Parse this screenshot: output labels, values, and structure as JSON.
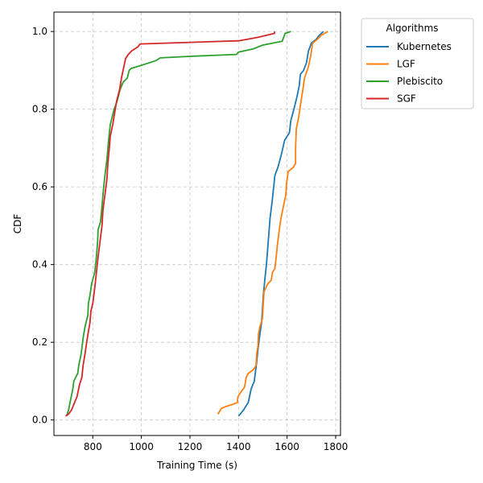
{
  "chart_data": {
    "type": "line",
    "title": "",
    "xlabel": "Training Time (s)",
    "ylabel": "CDF",
    "xlim": [
      640,
      1820
    ],
    "ylim": [
      -0.04,
      1.05
    ],
    "xticks": [
      800,
      1000,
      1200,
      1400,
      1600,
      1800
    ],
    "yticks": [
      0.0,
      0.2,
      0.4,
      0.6,
      0.8,
      1.0
    ],
    "xtick_labels": [
      "800",
      "1000",
      "1200",
      "1400",
      "1600",
      "1800"
    ],
    "ytick_labels": [
      "0.0",
      "0.2",
      "0.4",
      "0.6",
      "0.8",
      "1.0"
    ],
    "grid": true,
    "legend": {
      "title": "Algorithms",
      "placement": "outside-right-top"
    },
    "series": [
      {
        "name": "Kubernetes",
        "color": "#1f77b4",
        "points": [
          [
            1400,
            0.01
          ],
          [
            1420,
            0.025
          ],
          [
            1440,
            0.045
          ],
          [
            1452,
            0.08
          ],
          [
            1465,
            0.1
          ],
          [
            1475,
            0.15
          ],
          [
            1480,
            0.18
          ],
          [
            1488,
            0.22
          ],
          [
            1495,
            0.25
          ],
          [
            1498,
            0.28
          ],
          [
            1502,
            0.32
          ],
          [
            1508,
            0.36
          ],
          [
            1515,
            0.4
          ],
          [
            1520,
            0.44
          ],
          [
            1525,
            0.48
          ],
          [
            1530,
            0.52
          ],
          [
            1538,
            0.56
          ],
          [
            1545,
            0.6
          ],
          [
            1550,
            0.63
          ],
          [
            1562,
            0.65
          ],
          [
            1575,
            0.68
          ],
          [
            1590,
            0.72
          ],
          [
            1610,
            0.74
          ],
          [
            1615,
            0.77
          ],
          [
            1628,
            0.8
          ],
          [
            1640,
            0.83
          ],
          [
            1650,
            0.86
          ],
          [
            1655,
            0.89
          ],
          [
            1668,
            0.9
          ],
          [
            1680,
            0.92
          ],
          [
            1688,
            0.95
          ],
          [
            1700,
            0.97
          ],
          [
            1720,
            0.98
          ],
          [
            1732,
            0.99
          ],
          [
            1750,
            1.0
          ]
        ]
      },
      {
        "name": "LGF",
        "color": "#ff7f0e",
        "points": [
          [
            1315,
            0.015
          ],
          [
            1330,
            0.03
          ],
          [
            1350,
            0.035
          ],
          [
            1375,
            0.04
          ],
          [
            1395,
            0.045
          ],
          [
            1398,
            0.06
          ],
          [
            1408,
            0.07
          ],
          [
            1425,
            0.085
          ],
          [
            1432,
            0.11
          ],
          [
            1440,
            0.12
          ],
          [
            1462,
            0.13
          ],
          [
            1472,
            0.14
          ],
          [
            1475,
            0.17
          ],
          [
            1480,
            0.19
          ],
          [
            1482,
            0.22
          ],
          [
            1488,
            0.24
          ],
          [
            1498,
            0.26
          ],
          [
            1502,
            0.3
          ],
          [
            1505,
            0.33
          ],
          [
            1520,
            0.35
          ],
          [
            1535,
            0.36
          ],
          [
            1540,
            0.38
          ],
          [
            1550,
            0.39
          ],
          [
            1555,
            0.42
          ],
          [
            1560,
            0.45
          ],
          [
            1568,
            0.49
          ],
          [
            1575,
            0.52
          ],
          [
            1585,
            0.55
          ],
          [
            1595,
            0.58
          ],
          [
            1598,
            0.61
          ],
          [
            1605,
            0.64
          ],
          [
            1625,
            0.65
          ],
          [
            1635,
            0.66
          ],
          [
            1635,
            0.7
          ],
          [
            1638,
            0.75
          ],
          [
            1648,
            0.78
          ],
          [
            1655,
            0.81
          ],
          [
            1665,
            0.85
          ],
          [
            1672,
            0.88
          ],
          [
            1688,
            0.91
          ],
          [
            1698,
            0.94
          ],
          [
            1705,
            0.97
          ],
          [
            1725,
            0.98
          ],
          [
            1740,
            0.99
          ],
          [
            1768,
            1.0
          ]
        ]
      },
      {
        "name": "Plebiscito",
        "color": "#2ca02c",
        "points": [
          [
            692,
            0.01
          ],
          [
            700,
            0.025
          ],
          [
            708,
            0.05
          ],
          [
            718,
            0.08
          ],
          [
            722,
            0.1
          ],
          [
            738,
            0.12
          ],
          [
            742,
            0.14
          ],
          [
            752,
            0.17
          ],
          [
            760,
            0.21
          ],
          [
            768,
            0.24
          ],
          [
            780,
            0.27
          ],
          [
            782,
            0.3
          ],
          [
            788,
            0.32
          ],
          [
            795,
            0.35
          ],
          [
            808,
            0.38
          ],
          [
            815,
            0.42
          ],
          [
            820,
            0.46
          ],
          [
            822,
            0.49
          ],
          [
            832,
            0.51
          ],
          [
            838,
            0.55
          ],
          [
            845,
            0.6
          ],
          [
            850,
            0.63
          ],
          [
            858,
            0.67
          ],
          [
            865,
            0.72
          ],
          [
            872,
            0.76
          ],
          [
            880,
            0.78
          ],
          [
            888,
            0.8
          ],
          [
            900,
            0.82
          ],
          [
            912,
            0.85
          ],
          [
            925,
            0.87
          ],
          [
            942,
            0.88
          ],
          [
            950,
            0.9
          ],
          [
            958,
            0.905
          ],
          [
            1000,
            0.913
          ],
          [
            1060,
            0.925
          ],
          [
            1078,
            0.932
          ],
          [
            1200,
            0.936
          ],
          [
            1392,
            0.941
          ],
          [
            1400,
            0.947
          ],
          [
            1460,
            0.955
          ],
          [
            1500,
            0.965
          ],
          [
            1580,
            0.975
          ],
          [
            1592,
            0.995
          ],
          [
            1615,
            1.0
          ]
        ]
      },
      {
        "name": "SGF",
        "color": "#d62728",
        "points": [
          [
            688,
            0.01
          ],
          [
            700,
            0.015
          ],
          [
            712,
            0.025
          ],
          [
            722,
            0.04
          ],
          [
            735,
            0.06
          ],
          [
            745,
            0.09
          ],
          [
            755,
            0.11
          ],
          [
            760,
            0.14
          ],
          [
            768,
            0.17
          ],
          [
            775,
            0.2
          ],
          [
            780,
            0.22
          ],
          [
            788,
            0.25
          ],
          [
            792,
            0.28
          ],
          [
            800,
            0.3
          ],
          [
            808,
            0.34
          ],
          [
            815,
            0.38
          ],
          [
            822,
            0.42
          ],
          [
            830,
            0.46
          ],
          [
            838,
            0.5
          ],
          [
            842,
            0.54
          ],
          [
            850,
            0.58
          ],
          [
            858,
            0.62
          ],
          [
            862,
            0.66
          ],
          [
            868,
            0.7
          ],
          [
            872,
            0.73
          ],
          [
            882,
            0.76
          ],
          [
            890,
            0.79
          ],
          [
            898,
            0.82
          ],
          [
            910,
            0.85
          ],
          [
            918,
            0.88
          ],
          [
            928,
            0.91
          ],
          [
            935,
            0.93
          ],
          [
            945,
            0.94
          ],
          [
            960,
            0.95
          ],
          [
            985,
            0.96
          ],
          [
            995,
            0.968
          ],
          [
            1200,
            0.972
          ],
          [
            1400,
            0.976
          ],
          [
            1480,
            0.985
          ],
          [
            1548,
            0.995
          ],
          [
            1548,
            1.0
          ]
        ]
      }
    ]
  }
}
